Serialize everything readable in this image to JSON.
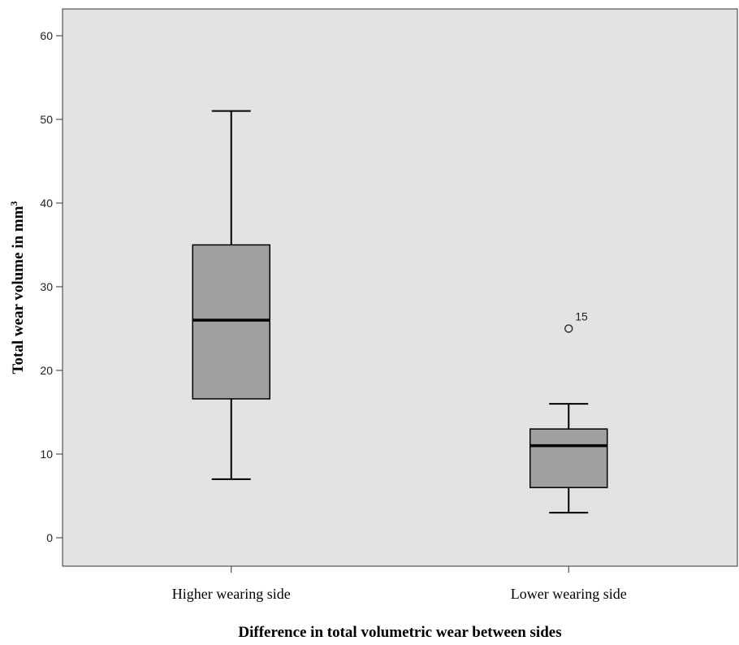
{
  "chart_data": {
    "type": "boxplot",
    "title": "",
    "xlabel": "Difference in total volumetric wear between sides",
    "ylabel": "Total wear volume in mm",
    "ylabel_superscript": "3",
    "ylim": [
      -3.4,
      63.2
    ],
    "yticks": [
      0,
      10,
      20,
      30,
      40,
      50,
      60
    ],
    "grid": false,
    "categories": [
      "Higher wearing side",
      "Lower wearing side"
    ],
    "boxes": [
      {
        "category": "Higher wearing side",
        "whisker_low": 7,
        "q1": 16.6,
        "median": 26,
        "q3": 35,
        "whisker_high": 51,
        "outliers": []
      },
      {
        "category": "Lower wearing side",
        "whisker_low": 3,
        "q1": 6,
        "median": 11,
        "q3": 13,
        "whisker_high": 16,
        "outliers": [
          {
            "value": 25,
            "label": "15"
          }
        ]
      }
    ],
    "colors": {
      "plot_background": "#e3e3e3",
      "box_fill": "#a0a0a0",
      "line": "#000000"
    }
  }
}
